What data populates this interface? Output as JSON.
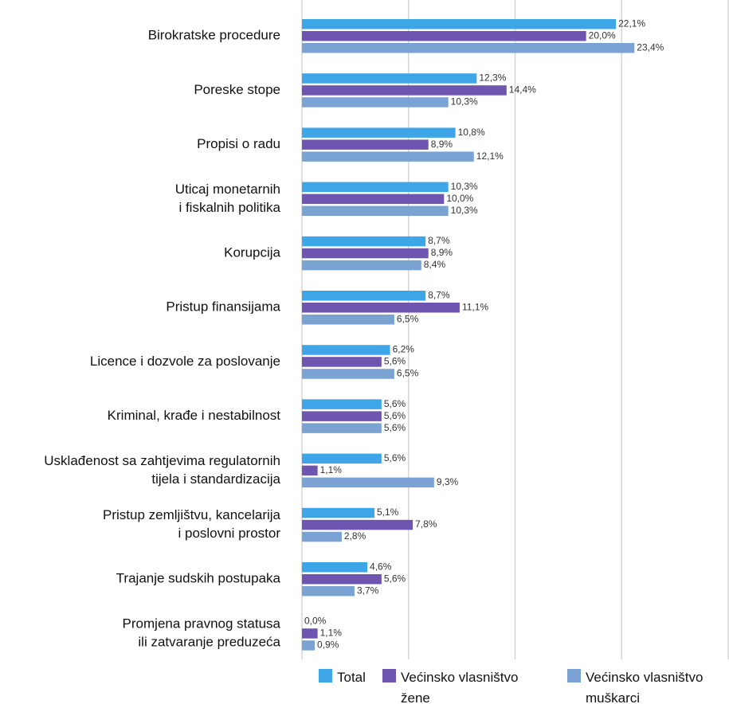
{
  "chart_data": {
    "type": "hbar",
    "categories": [
      [
        "Birokratske procedure"
      ],
      [
        "Poreske stope"
      ],
      [
        "Propisi o radu"
      ],
      [
        "Uticaj monetarnih",
        "i fiskalnih politika"
      ],
      [
        "Korupcija"
      ],
      [
        "Pristup finansijama"
      ],
      [
        "Licence i dozvole za poslovanje"
      ],
      [
        "Kriminal, krađe i nestabilnost"
      ],
      [
        "Usklađenost sa zahtjevima regulatornih",
        "tijela i standardizacija"
      ],
      [
        "Pristup zemljištvu, kancelarija",
        "i poslovni prostor"
      ],
      [
        "Trajanje sudskih postupaka"
      ],
      [
        "Promjena pravnog statusa",
        "ili zatvaranje preduzeća"
      ]
    ],
    "series": [
      {
        "name": "Total",
        "color": "#3ea6e6",
        "values": [
          22.1,
          12.3,
          10.8,
          10.3,
          8.7,
          8.7,
          6.2,
          5.6,
          5.6,
          5.1,
          4.6,
          0.0
        ],
        "value_labels": [
          "22,1%",
          "12,3%",
          "10,8%",
          "10,3%",
          "8,7%",
          "8,7%",
          "6,2%",
          "5,6%",
          "5,6%",
          "5,1%",
          "4,6%",
          "0,0%"
        ]
      },
      {
        "name": "Većinsko vlasništvo žene",
        "color": "#6e55b0",
        "values": [
          20.0,
          14.4,
          8.9,
          10.0,
          8.9,
          11.1,
          5.6,
          5.6,
          1.1,
          7.8,
          5.6,
          1.1
        ],
        "value_labels": [
          "20,0%",
          "14,4%",
          "8,9%",
          "10,0%",
          "8,9%",
          "11,1%",
          "5,6%",
          "5,6%",
          "1,1%",
          "7,8%",
          "5,6%",
          "1,1%"
        ]
      },
      {
        "name": "Većinsko vlasništvo muškarci",
        "color": "#7aa3d4",
        "values": [
          23.4,
          10.3,
          12.1,
          10.3,
          8.4,
          6.5,
          6.5,
          5.6,
          9.3,
          2.8,
          3.7,
          0.9
        ],
        "value_labels": [
          "23,4%",
          "10,3%",
          "12,1%",
          "10,3%",
          "8,4%",
          "6,5%",
          "6,5%",
          "5,6%",
          "9,3%",
          "2,8%",
          "3,7%",
          "0,9%"
        ]
      }
    ],
    "xlim": [
      0,
      30
    ],
    "xticks": [
      0,
      7.5,
      15,
      22.5,
      30
    ],
    "grid": true
  }
}
